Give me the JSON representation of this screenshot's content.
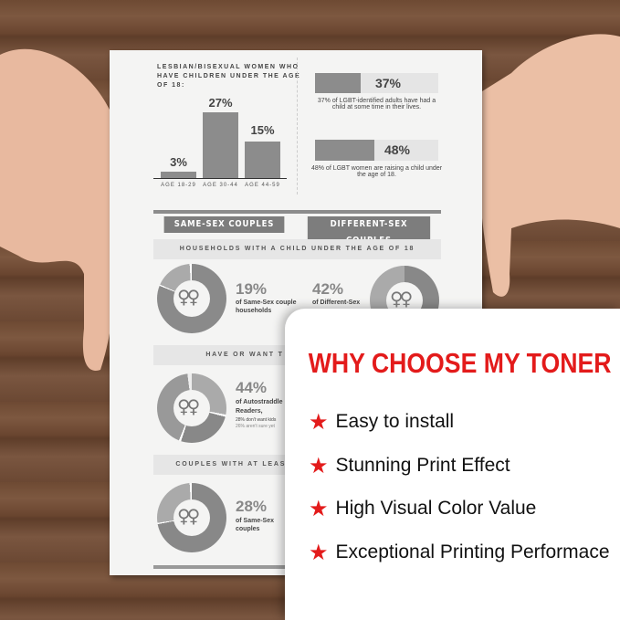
{
  "paper": {
    "bar_chart": {
      "title": "LESBIAN/BISEXUAL WOMEN WHO HAVE CHILDREN UNDER THE AGE OF 18:",
      "categories": [
        "AGE 18-29",
        "AGE 30-44",
        "AGE 44-59"
      ],
      "values": [
        3,
        27,
        15
      ],
      "labels": [
        "3%",
        "27%",
        "15%"
      ]
    },
    "stat1": {
      "value": "37%",
      "fraction": 0.37,
      "text": "37% of LGBT-identified adults have had a child at some time in their lives."
    },
    "stat2": {
      "value": "48%",
      "fraction": 0.48,
      "text": "48% of LGBT women are raising a child under the age of 18."
    },
    "headers": {
      "left": "SAME-SEX COUPLES",
      "right": "DIFFERENT-SEX COUPLES"
    },
    "band1": "HOUSEHOLDS WITH A CHILD UNDER THE AGE OF 18",
    "donut1": {
      "value": "19%",
      "text": "of Same-Sex couple households",
      "fraction": 0.19
    },
    "donut2": {
      "value": "42%",
      "text": "of Different-Sex",
      "fraction": 0.42
    },
    "band2": "HAVE OR WANT T",
    "donut3": {
      "value": "44%",
      "line1": "of Autostraddle",
      "line2": "Readers,",
      "note1": "28% don't want kids",
      "note2": "26% aren't sure yet",
      "fraction": 0.44
    },
    "band3": "COUPLES WITH AT LEAST ONE",
    "donut4": {
      "value": "28%",
      "text": "of Same-Sex couples",
      "fraction": 0.28
    },
    "symbol": "♀♀"
  },
  "card": {
    "title": "WHY CHOOSE MY TONER",
    "accent": "#e31b1b",
    "items": [
      {
        "icon": "star-icon",
        "label": "Easy to install"
      },
      {
        "icon": "star-icon",
        "label": "Stunning Print Effect"
      },
      {
        "icon": "star-icon",
        "label": "High Visual Color Value"
      },
      {
        "icon": "star-icon",
        "label": "Exceptional Printing Performace"
      }
    ]
  }
}
